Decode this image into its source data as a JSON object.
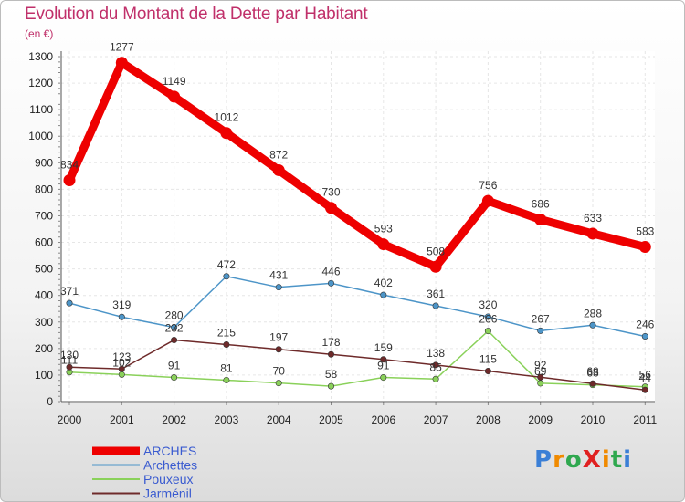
{
  "title": "Evolution du Montant de la Dette par Habitant",
  "subtitle": "(en €)",
  "logo": "ProXiti",
  "chart_data": {
    "type": "line",
    "title": "Evolution du Montant de la Dette par Habitant",
    "ylabel": "(en €)",
    "xlabel": "",
    "ylim": [
      0,
      1300
    ],
    "yticks": [
      0,
      100,
      200,
      300,
      400,
      500,
      600,
      700,
      800,
      900,
      1000,
      1100,
      1200,
      1300
    ],
    "categories": [
      "2000",
      "2001",
      "2002",
      "2003",
      "2004",
      "2005",
      "2006",
      "2007",
      "2008",
      "2009",
      "2010",
      "2011"
    ],
    "legend_position": "bottom-left",
    "series": [
      {
        "name": "ARCHES",
        "color": "#ee0000",
        "values": [
          834,
          1277,
          1149,
          1012,
          872,
          730,
          593,
          508,
          756,
          686,
          633,
          583
        ]
      },
      {
        "name": "Archettes",
        "color": "#4d95c8",
        "values": [
          371,
          319,
          280,
          472,
          431,
          446,
          402,
          361,
          320,
          267,
          288,
          246
        ]
      },
      {
        "name": "Pouxeux",
        "color": "#8ad15a",
        "values": [
          111,
          102,
          91,
          81,
          70,
          58,
          91,
          85,
          266,
          69,
          63,
          56
        ]
      },
      {
        "name": "Jarménil",
        "color": "#6e2a2a",
        "values": [
          130,
          123,
          232,
          215,
          197,
          178,
          159,
          138,
          115,
          92,
          68,
          44
        ]
      }
    ]
  }
}
